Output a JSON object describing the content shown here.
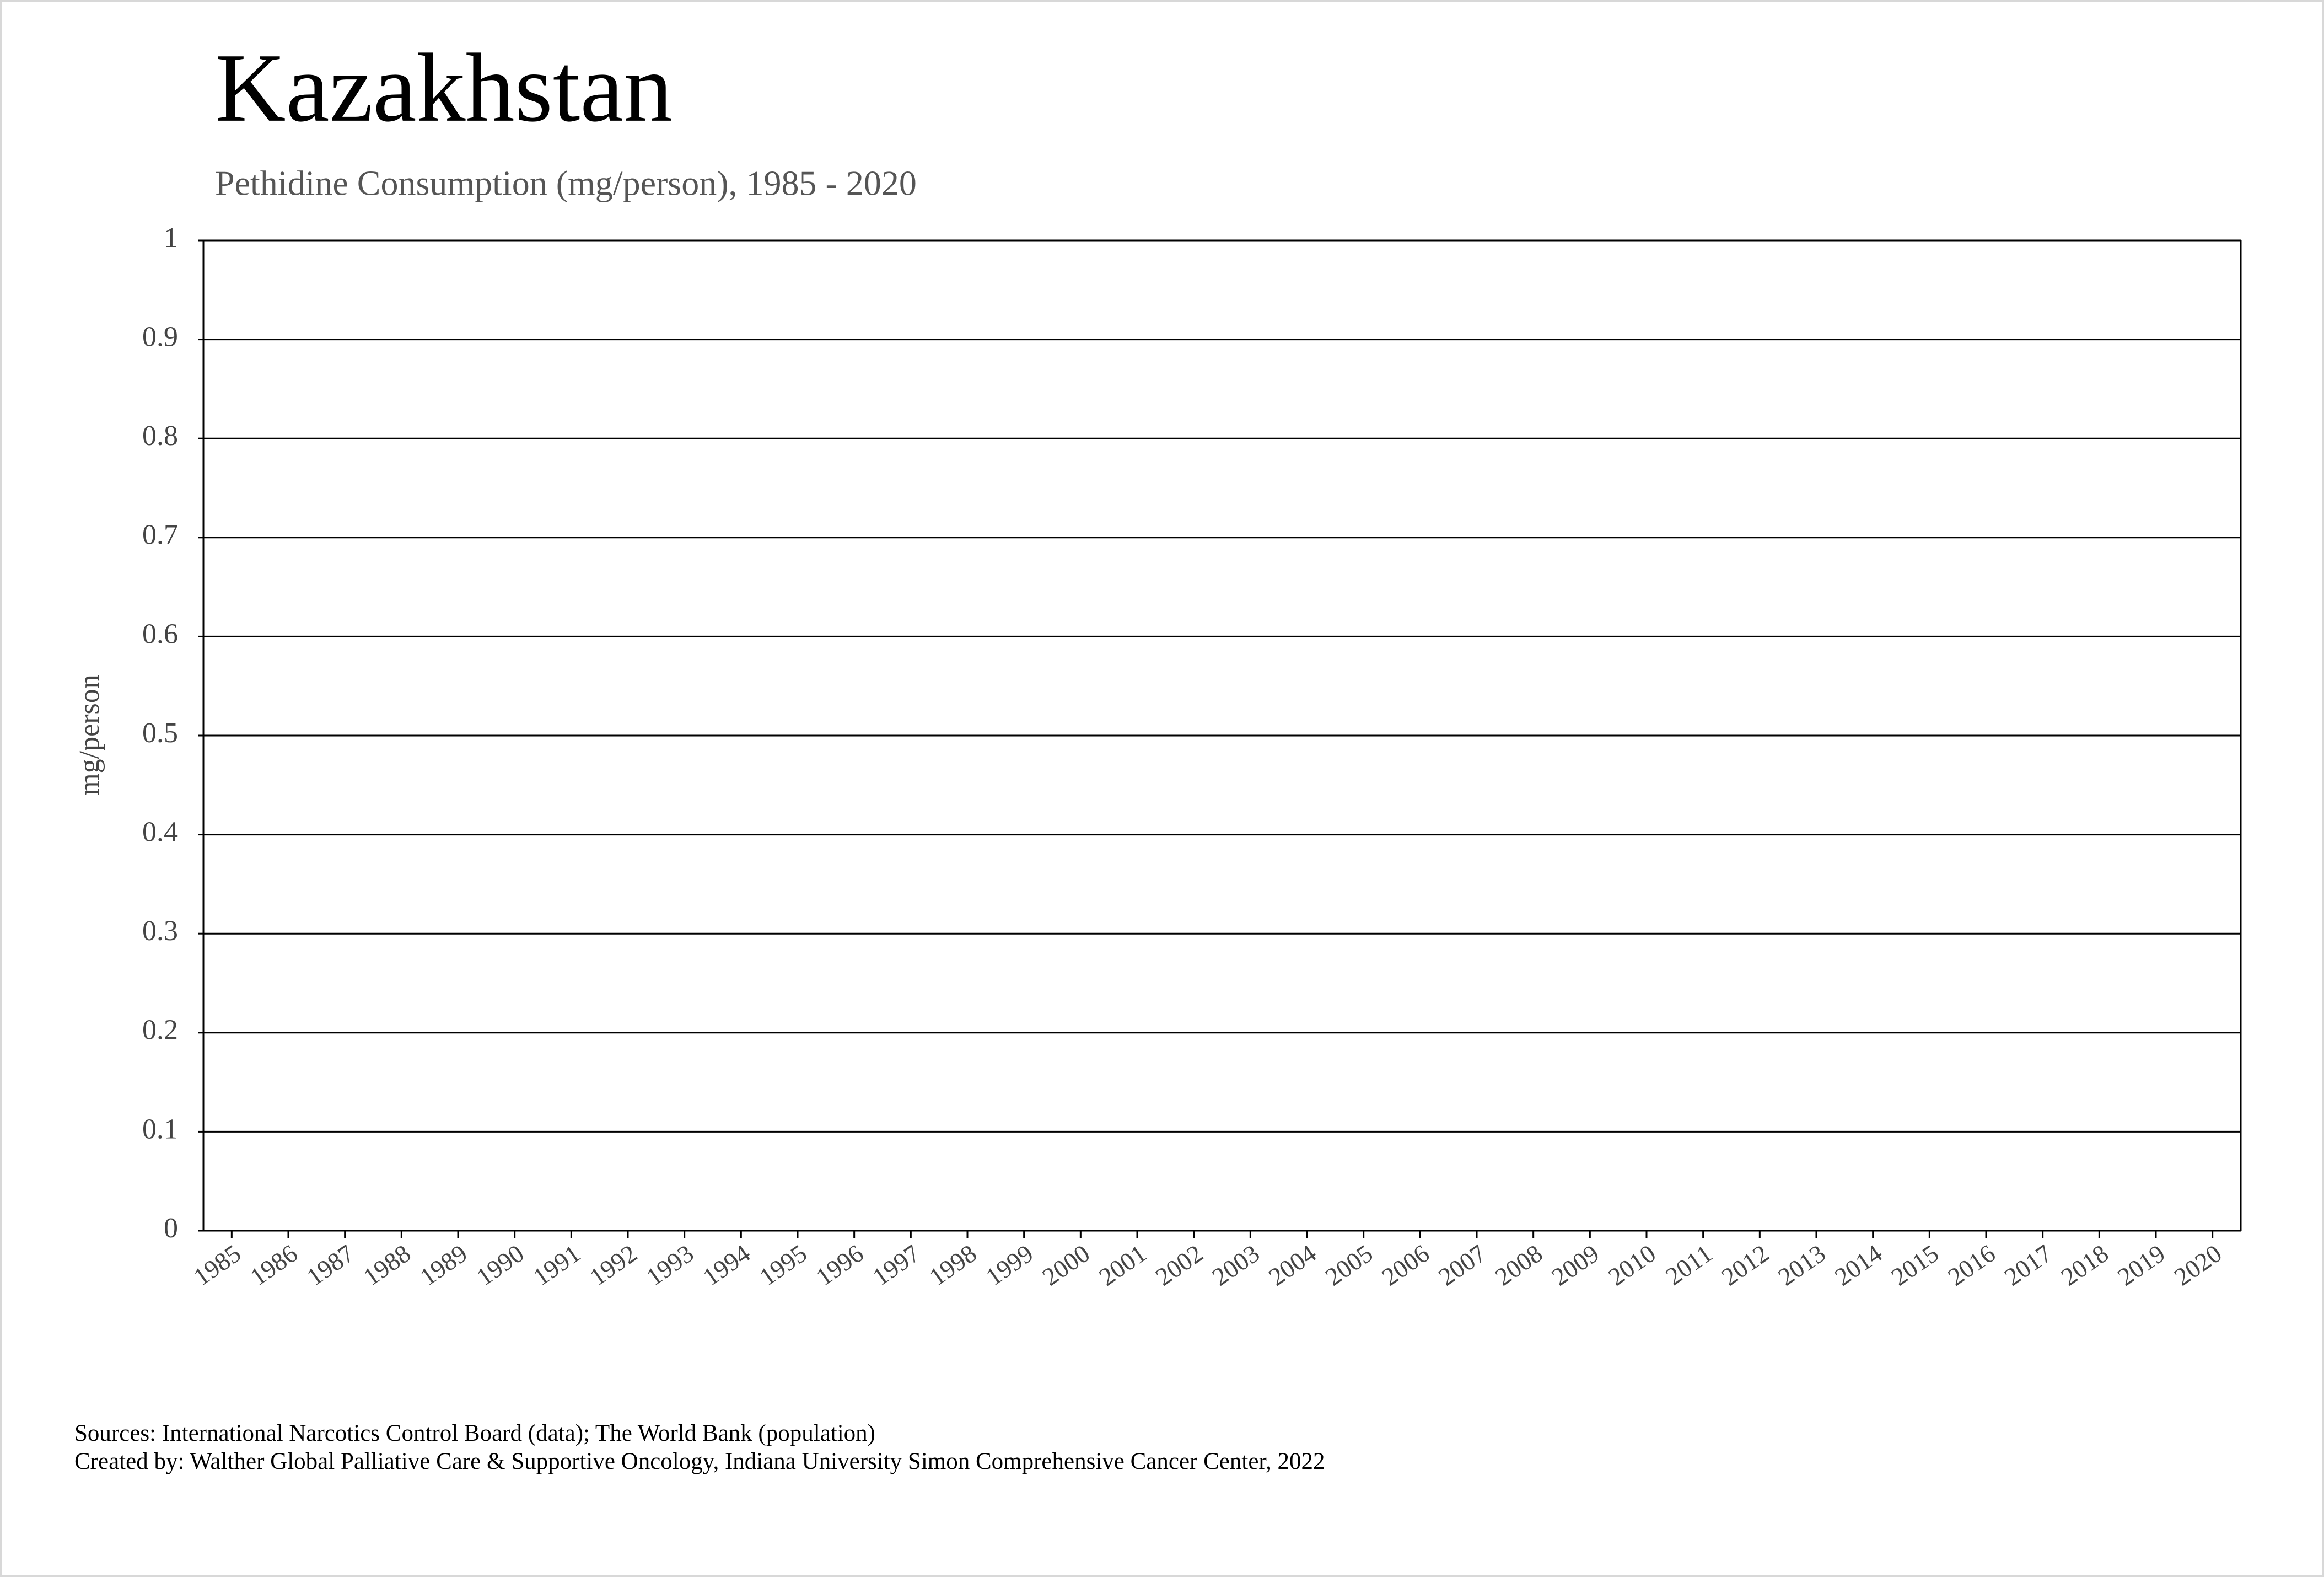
{
  "chart_data": {
    "type": "line",
    "title": "Kazakhstan",
    "subtitle": "Pethidine Consumption (mg/person), 1985 - 2020",
    "y_label": "mg/person",
    "categories": [
      "1985",
      "1986",
      "1987",
      "1988",
      "1989",
      "1990",
      "1991",
      "1992",
      "1993",
      "1994",
      "1995",
      "1996",
      "1997",
      "1998",
      "1999",
      "2000",
      "2001",
      "2002",
      "2003",
      "2004",
      "2005",
      "2006",
      "2007",
      "2008",
      "2009",
      "2010",
      "2011",
      "2012",
      "2013",
      "2014",
      "2015",
      "2016",
      "2017",
      "2018",
      "2019",
      "2020"
    ],
    "ylim": [
      0,
      1
    ],
    "yticks": [
      0,
      0.1,
      0.2,
      0.3,
      0.4,
      0.5,
      0.6,
      0.7,
      0.8,
      0.9,
      1
    ],
    "grid": true,
    "sources": "Sources: International Narcotics Control Board (data); The World Bank (population)",
    "credit": "Created by: Walther Global Palliative Care & Supportive Oncology, Indiana University Simon Comprehensive Cancer Center, 2022"
  }
}
